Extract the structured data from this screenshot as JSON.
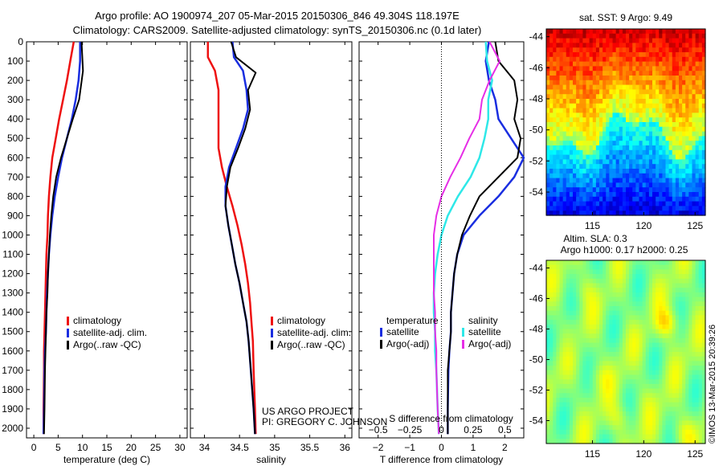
{
  "header": {
    "line1": "Argo profile: AO 1900974_207 05-Mar-2015 20150306_846 49.304S 118.197E",
    "line2": "Climatology: CARS2009. Satellite-adjusted climatology: synTS_20150306.nc (0.1d later)"
  },
  "credit": {
    "line1": "US ARGO PROJECT",
    "line2": "PI: GREGORY C. JOHNSON"
  },
  "watermark": "©IMOS 13-Mar-2015 20:39:26",
  "colors": {
    "red": "#ee1111",
    "blue": "#1a2ee0",
    "black": "#000000",
    "cyan": "#2ee8e8",
    "magenta": "#e62ee6"
  },
  "chart_data": [
    {
      "type": "line",
      "id": "temperature",
      "xlabel": "temperature (deg C)",
      "ylabel": "",
      "xlim": [
        -1.5,
        31.5
      ],
      "ylim": [
        2050,
        0
      ],
      "xticks": [
        0,
        5,
        10,
        15,
        20,
        25,
        30
      ],
      "xticklabels": [
        "0",
        "5",
        "10",
        "15",
        "20",
        "25",
        "30"
      ],
      "yticks": [
        0,
        100,
        200,
        300,
        400,
        500,
        600,
        700,
        800,
        900,
        1000,
        1100,
        1200,
        1300,
        1400,
        1500,
        1600,
        1700,
        1800,
        1900,
        2000
      ],
      "legend": {
        "placement": "lower-center",
        "entries": [
          "climatology",
          "satellite-adj. clim.",
          "Argo(..raw -QC)"
        ]
      },
      "series": [
        {
          "name": "climatology",
          "color": "red",
          "width": 2.5,
          "x": [
            8.2,
            7.5,
            6.8,
            6.0,
            5.2,
            4.5,
            3.8,
            3.4,
            3.1,
            2.9,
            2.8,
            2.6,
            2.5,
            2.4,
            2.3,
            2.2,
            2.1,
            2.1,
            2.0,
            2.0
          ],
          "y": [
            0,
            100,
            200,
            300,
            400,
            500,
            600,
            700,
            800,
            900,
            1000,
            1100,
            1200,
            1300,
            1400,
            1500,
            1600,
            1700,
            1900,
            2030
          ]
        },
        {
          "name": "satellite-adj. clim.",
          "color": "blue",
          "width": 2.5,
          "x": [
            9.5,
            9.5,
            9.2,
            8.6,
            7.8,
            6.8,
            5.8,
            5.0,
            4.3,
            3.8,
            3.4,
            3.1,
            2.9,
            2.7,
            2.6,
            2.5,
            2.3,
            2.2,
            2.1,
            2.0
          ],
          "y": [
            0,
            100,
            200,
            300,
            400,
            500,
            600,
            700,
            800,
            900,
            1000,
            1100,
            1200,
            1300,
            1400,
            1500,
            1600,
            1700,
            1900,
            2030
          ]
        },
        {
          "name": "Argo(..raw -QC)",
          "color": "black",
          "width": 2,
          "x": [
            9.8,
            10.0,
            10.1,
            9.3,
            8.0,
            6.8,
            5.6,
            4.6,
            4.0,
            3.6,
            3.3,
            3.1,
            2.9,
            2.8,
            2.6,
            2.5,
            2.4,
            2.3,
            2.2,
            2.1
          ],
          "y": [
            0,
            100,
            150,
            300,
            400,
            500,
            600,
            700,
            800,
            900,
            1000,
            1100,
            1200,
            1300,
            1400,
            1500,
            1600,
            1700,
            1900,
            2030
          ]
        }
      ]
    },
    {
      "type": "line",
      "id": "salinity",
      "xlabel": "salinity",
      "xlim": [
        33.8,
        36.1
      ],
      "ylim": [
        2050,
        0
      ],
      "xticks": [
        34,
        34.5,
        35,
        35.5,
        36
      ],
      "xticklabels": [
        "34",
        "34.5",
        "35",
        "35.5",
        "36"
      ],
      "legend": {
        "placement": "lower-center",
        "entries": [
          "climatology",
          "satellite-adj. clim.",
          "Argo(..raw -QC)"
        ]
      },
      "series": [
        {
          "name": "climatology",
          "color": "red",
          "width": 2.5,
          "x": [
            34.05,
            34.05,
            34.15,
            34.2,
            34.2,
            34.2,
            34.2,
            34.25,
            34.32,
            34.4,
            34.47,
            34.53,
            34.58,
            34.62,
            34.65,
            34.67,
            34.69,
            34.7,
            34.72,
            34.73
          ],
          "y": [
            0,
            80,
            150,
            250,
            350,
            450,
            550,
            650,
            750,
            850,
            950,
            1050,
            1150,
            1250,
            1350,
            1450,
            1550,
            1700,
            1900,
            2030
          ]
        },
        {
          "name": "satellite-adj. clim.",
          "color": "blue",
          "width": 2.5,
          "x": [
            34.4,
            34.42,
            34.55,
            34.6,
            34.62,
            34.55,
            34.45,
            34.35,
            34.3,
            34.3,
            34.34,
            34.39,
            34.44,
            34.5,
            34.55,
            34.6,
            34.63,
            34.66,
            34.7,
            34.72
          ],
          "y": [
            0,
            80,
            150,
            250,
            350,
            450,
            550,
            650,
            750,
            850,
            950,
            1050,
            1150,
            1250,
            1350,
            1450,
            1550,
            1700,
            1900,
            2030
          ]
        },
        {
          "name": "Argo(..raw -QC)",
          "color": "black",
          "width": 2,
          "x": [
            34.38,
            34.45,
            34.73,
            34.62,
            34.65,
            34.58,
            34.48,
            34.37,
            34.32,
            34.3,
            34.34,
            34.39,
            34.44,
            34.5,
            34.55,
            34.6,
            34.63,
            34.66,
            34.7,
            34.72
          ],
          "y": [
            0,
            80,
            160,
            250,
            350,
            450,
            550,
            650,
            750,
            850,
            950,
            1050,
            1150,
            1250,
            1350,
            1450,
            1550,
            1700,
            1900,
            2030
          ]
        }
      ]
    },
    {
      "type": "line",
      "id": "difference",
      "xlabel": "T difference from climatology",
      "xlabel_top": "S difference from climatology",
      "xlim": [
        -2.6,
        2.6
      ],
      "ylim": [
        2050,
        0
      ],
      "xticks": [
        -2,
        -1,
        0,
        1,
        2
      ],
      "xticklabels": [
        "−2",
        "−1",
        "0",
        "1",
        "2"
      ],
      "s_xlim": [
        -0.65,
        0.65
      ],
      "s_xticks": [
        -0.5,
        -0.25,
        0,
        0.25,
        0.5
      ],
      "s_xticklabels": [
        "−0.5",
        "−0.25",
        "0",
        "0.25",
        "0.5"
      ],
      "legend": {
        "placement": "lower-center",
        "left_header": "temperature",
        "right_header": "salinity",
        "entries": [
          "satellite",
          "Argo(-adj)",
          "satellite",
          "Argo(-adj)"
        ]
      },
      "series": [
        {
          "name": "satellite",
          "group": "temperature",
          "color": "blue",
          "width": 2.5,
          "x": [
            1.5,
            1.4,
            1.5,
            1.7,
            1.8,
            2.2,
            2.6,
            2.3,
            1.8,
            1.2,
            0.7,
            0.5,
            0.4,
            0.35,
            0.3,
            0.3,
            0.25,
            0.22,
            0.2,
            0.2
          ],
          "y": [
            0,
            100,
            200,
            300,
            400,
            500,
            600,
            700,
            800,
            900,
            1000,
            1100,
            1200,
            1300,
            1400,
            1500,
            1600,
            1700,
            1900,
            2030
          ]
        },
        {
          "name": "Argo(-adj)",
          "group": "temperature",
          "color": "black",
          "width": 2,
          "x": [
            1.7,
            1.8,
            2.3,
            2.4,
            2.3,
            2.5,
            2.4,
            1.8,
            1.2,
            0.9,
            0.65,
            0.5,
            0.4,
            0.35,
            0.3,
            0.3,
            0.25,
            0.2,
            0.2,
            0.2
          ],
          "y": [
            0,
            100,
            200,
            300,
            400,
            500,
            600,
            700,
            800,
            900,
            1000,
            1100,
            1200,
            1300,
            1400,
            1500,
            1600,
            1700,
            1900,
            2030
          ]
        },
        {
          "name": "satellite",
          "group": "salinity",
          "color": "cyan",
          "width": 2.5,
          "x": [
            0.35,
            0.36,
            0.4,
            0.37,
            0.37,
            0.34,
            0.3,
            0.23,
            0.13,
            0.05,
            0,
            -0.03,
            -0.05,
            -0.06,
            -0.06,
            -0.05,
            -0.05,
            -0.04,
            -0.03,
            -0.02
          ],
          "y": [
            0,
            100,
            200,
            300,
            400,
            500,
            600,
            700,
            800,
            900,
            1000,
            1100,
            1200,
            1300,
            1400,
            1500,
            1600,
            1700,
            1900,
            2030
          ]
        },
        {
          "name": "Argo(-adj)",
          "group": "salinity",
          "color": "magenta",
          "width": 2,
          "x": [
            0.38,
            0.46,
            0.38,
            0.32,
            0.3,
            0.22,
            0.15,
            0.07,
            0.0,
            -0.04,
            -0.06,
            -0.06,
            -0.06,
            -0.06,
            -0.05,
            -0.05,
            -0.04,
            -0.04,
            -0.03,
            -0.02
          ],
          "y": [
            0,
            100,
            200,
            300,
            400,
            500,
            600,
            700,
            800,
            900,
            1000,
            1100,
            1200,
            1300,
            1400,
            1500,
            1600,
            1700,
            1900,
            2030
          ]
        }
      ]
    },
    {
      "type": "heatmap",
      "id": "sst-map",
      "title": "sat. SST: 9 Argo: 9.49",
      "xlim": [
        110.5,
        126
      ],
      "ylim": [
        -55.5,
        -43.5
      ],
      "xticks": [
        115,
        120,
        125
      ],
      "xticklabels": [
        "115",
        "120",
        "125"
      ],
      "yticks": [
        -44,
        -46,
        -48,
        -50,
        -52,
        -54
      ],
      "yticklabels": [
        "-44",
        "-46",
        "-48",
        "-50",
        "-52",
        "-54"
      ]
    },
    {
      "type": "heatmap",
      "id": "sla-map",
      "title": "Altim. SLA: 0.3",
      "subtitle": "Argo h1000: 0.17 h2000: 0.25",
      "xlim": [
        110.5,
        126
      ],
      "ylim": [
        -55.5,
        -43.5
      ],
      "xticks": [
        115,
        120,
        125
      ],
      "xticklabels": [
        "115",
        "120",
        "125"
      ],
      "yticks": [
        -44,
        -46,
        -48,
        -50,
        -52,
        -54
      ],
      "yticklabels": [
        "-44",
        "-46",
        "-48",
        "-50",
        "-52",
        "-54"
      ]
    }
  ]
}
